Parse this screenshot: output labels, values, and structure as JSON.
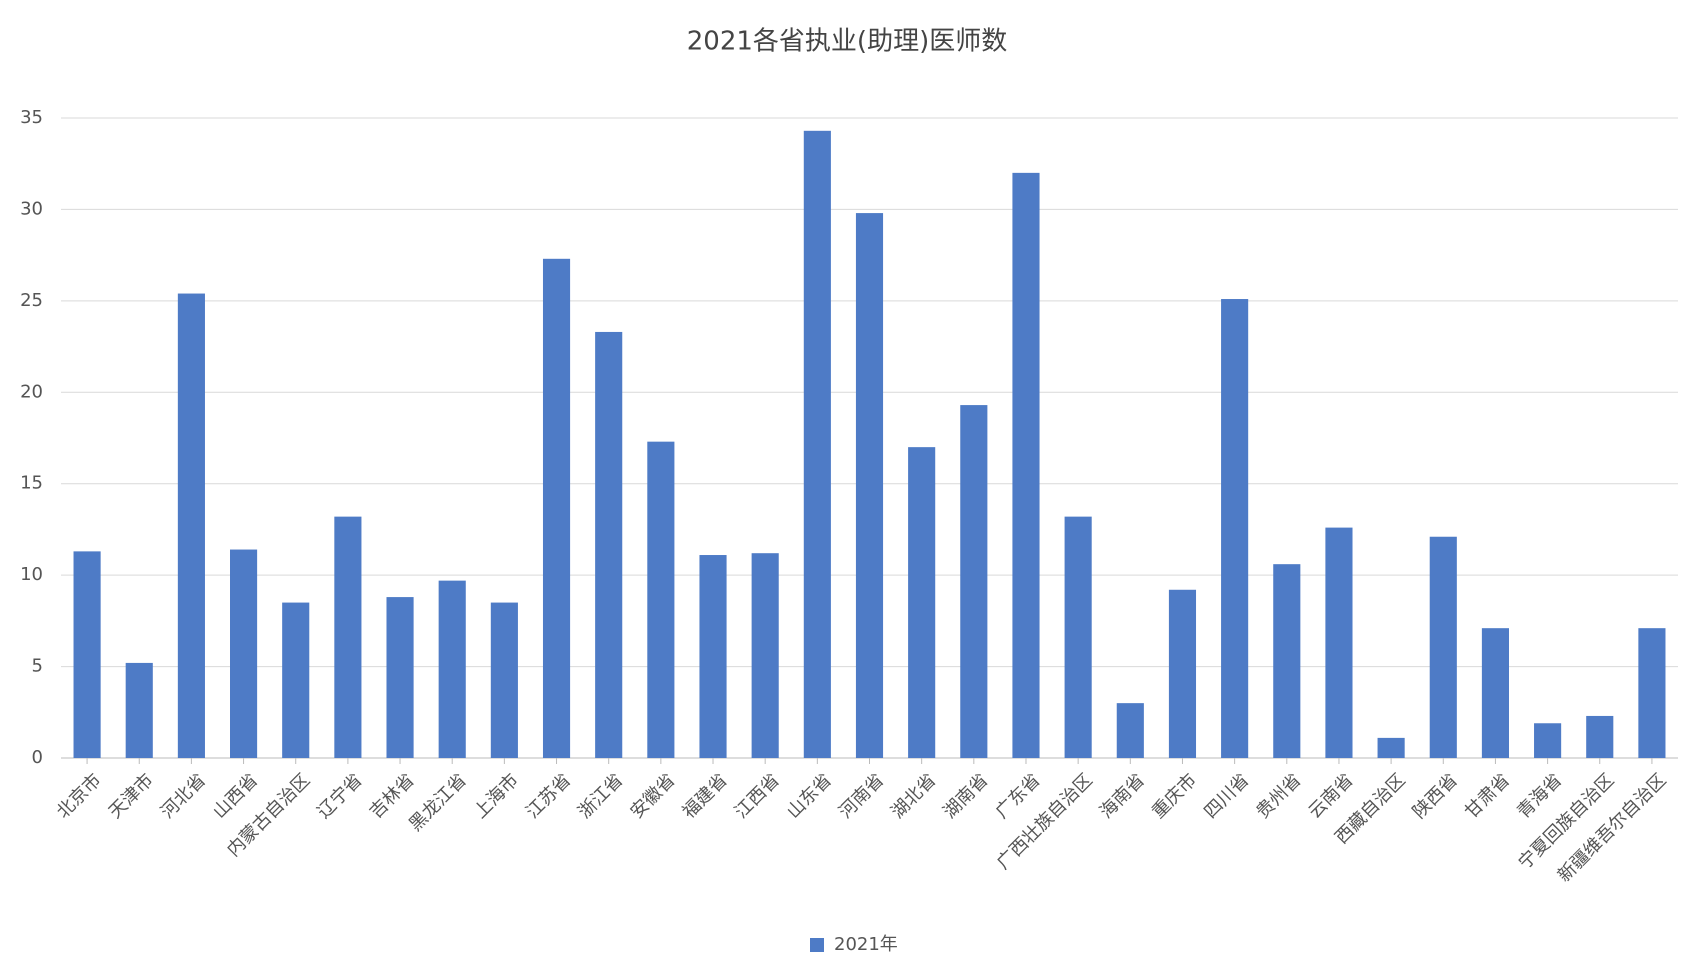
{
  "chart_data": {
    "type": "bar",
    "title": "2021各省执业(助理)医师数",
    "categories": [
      "北京市",
      "天津市",
      "河北省",
      "山西省",
      "内蒙古自治区",
      "辽宁省",
      "吉林省",
      "黑龙江省",
      "上海市",
      "江苏省",
      "浙江省",
      "安徽省",
      "福建省",
      "江西省",
      "山东省",
      "河南省",
      "湖北省",
      "湖南省",
      "广东省",
      "广西壮族自治区",
      "海南省",
      "重庆市",
      "四川省",
      "贵州省",
      "云南省",
      "西藏自治区",
      "陕西省",
      "甘肃省",
      "青海省",
      "宁夏回族自治区",
      "新疆维吾尔自治区"
    ],
    "series": [
      {
        "name": "2021年",
        "color": "#4e7bc6",
        "values": [
          11.3,
          5.2,
          25.4,
          11.4,
          8.5,
          13.2,
          8.8,
          9.7,
          8.5,
          27.3,
          23.3,
          17.3,
          11.1,
          11.2,
          34.3,
          29.8,
          17.0,
          19.3,
          32.0,
          13.2,
          3.0,
          9.2,
          25.1,
          10.6,
          12.6,
          1.1,
          12.1,
          7.1,
          1.9,
          2.3,
          7.1
        ]
      }
    ],
    "ylim": [
      0,
      35
    ],
    "yticks": [
      0,
      5,
      10,
      15,
      20,
      25,
      30,
      35
    ],
    "grid": true
  }
}
